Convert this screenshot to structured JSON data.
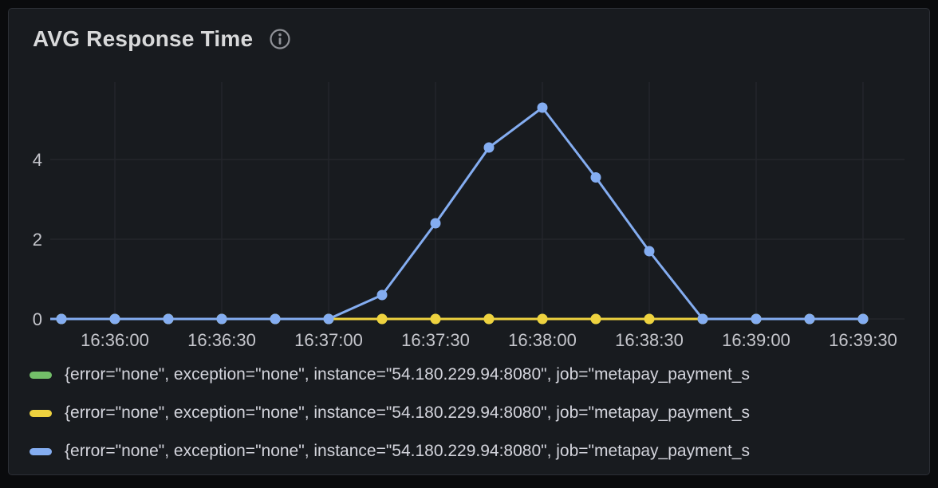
{
  "panel": {
    "title": "AVG Response Time"
  },
  "colors": {
    "outer_background": "#0a0b0d",
    "panel_background": "#181b1f",
    "panel_border": "#2c2f36",
    "grid": "#24262c",
    "axis_text": "#c5c6cc",
    "title_text": "#d8d9da",
    "legend_text": "#d3d4dc",
    "icon": "#909298",
    "series_green": "#73bf69",
    "series_yellow": "#eed23f",
    "series_blue": "#84adf1"
  },
  "chart_data": {
    "type": "line",
    "title": "AVG Response Time",
    "x": [
      "16:35:45",
      "16:36:00",
      "16:36:15",
      "16:36:30",
      "16:36:45",
      "16:37:00",
      "16:37:15",
      "16:37:30",
      "16:37:45",
      "16:38:00",
      "16:38:15",
      "16:38:30",
      "16:38:45",
      "16:39:00",
      "16:39:15",
      "16:39:30"
    ],
    "x_tick_labels": [
      "16:36:00",
      "16:36:30",
      "16:37:00",
      "16:37:30",
      "16:38:00",
      "16:38:30",
      "16:39:00",
      "16:39:30"
    ],
    "y_ticks": [
      0,
      2,
      4
    ],
    "ylim": [
      0,
      6
    ],
    "grid": true,
    "legend_position": "bottom",
    "series": [
      {
        "name": "series-green",
        "color": "#73bf69",
        "values": [
          0,
          0,
          0,
          0,
          0,
          0,
          0,
          0,
          0,
          0,
          0,
          0,
          0,
          0,
          0,
          0
        ]
      },
      {
        "name": "series-yellow",
        "color": "#eed23f",
        "values": [
          0,
          0,
          0,
          0,
          0,
          0,
          0,
          0,
          0,
          0,
          0,
          0,
          0,
          0,
          0,
          0
        ]
      },
      {
        "name": "series-blue",
        "color": "#84adf1",
        "values": [
          0,
          0,
          0,
          0,
          0,
          0,
          0.6,
          2.4,
          4.3,
          5.3,
          3.55,
          1.7,
          0,
          0,
          0,
          0
        ]
      }
    ],
    "legend": [
      {
        "color": "#73bf69",
        "label": "{error=\"none\", exception=\"none\", instance=\"54.180.229.94:8080\", job=\"metapay_payment_s"
      },
      {
        "color": "#eed23f",
        "label": "{error=\"none\", exception=\"none\", instance=\"54.180.229.94:8080\", job=\"metapay_payment_s"
      },
      {
        "color": "#84adf1",
        "label": "{error=\"none\", exception=\"none\", instance=\"54.180.229.94:8080\", job=\"metapay_payment_s"
      }
    ]
  }
}
